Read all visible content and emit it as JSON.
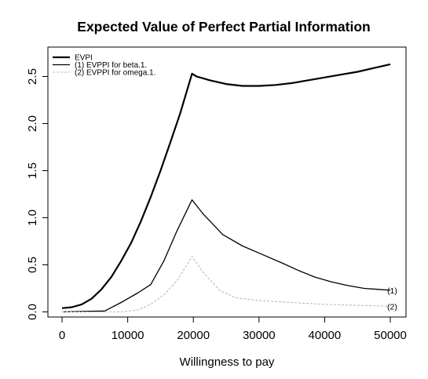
{
  "chart_data": {
    "type": "line",
    "title": "Expected Value of Perfect Partial Information",
    "xlabel": "Willingness to pay",
    "ylabel": "",
    "xlim": [
      0,
      50000
    ],
    "ylim": [
      0,
      2.6
    ],
    "x_ticks": [
      0,
      10000,
      20000,
      30000,
      40000,
      50000
    ],
    "y_ticks": [
      0.0,
      0.5,
      1.0,
      1.5,
      2.0,
      2.5
    ],
    "x_tick_labels": [
      "0",
      "10000",
      "20000",
      "30000",
      "40000",
      "50000"
    ],
    "y_tick_labels": [
      "0.0",
      "0.5",
      "1.0",
      "1.5",
      "2.0",
      "2.5"
    ],
    "grid": false,
    "legend_position": "top-left",
    "series": [
      {
        "name": "EVPI",
        "style": "solid-thick",
        "color": "#000000",
        "points": [
          [
            0,
            0.04
          ],
          [
            1500,
            0.05
          ],
          [
            3000,
            0.08
          ],
          [
            4500,
            0.14
          ],
          [
            6000,
            0.24
          ],
          [
            7500,
            0.37
          ],
          [
            9000,
            0.54
          ],
          [
            10500,
            0.73
          ],
          [
            12000,
            0.96
          ],
          [
            13500,
            1.22
          ],
          [
            15000,
            1.5
          ],
          [
            16500,
            1.8
          ],
          [
            18000,
            2.11
          ],
          [
            19800,
            2.53
          ],
          [
            20500,
            2.5
          ],
          [
            22500,
            2.46
          ],
          [
            25000,
            2.42
          ],
          [
            27500,
            2.4
          ],
          [
            30000,
            2.4
          ],
          [
            32500,
            2.41
          ],
          [
            35000,
            2.43
          ],
          [
            37500,
            2.46
          ],
          [
            40000,
            2.49
          ],
          [
            42500,
            2.52
          ],
          [
            45000,
            2.55
          ],
          [
            47500,
            2.59
          ],
          [
            50000,
            2.63
          ]
        ]
      },
      {
        "name": "(1) EVPPI for beta.1.",
        "style": "solid",
        "color": "#000000",
        "end_label": "(1)",
        "points": [
          [
            0,
            0.0
          ],
          [
            6500,
            0.01
          ],
          [
            9000,
            0.1
          ],
          [
            11500,
            0.2
          ],
          [
            13500,
            0.29
          ],
          [
            15500,
            0.54
          ],
          [
            17500,
            0.86
          ],
          [
            19800,
            1.19
          ],
          [
            21500,
            1.04
          ],
          [
            24500,
            0.82
          ],
          [
            27500,
            0.7
          ],
          [
            30500,
            0.61
          ],
          [
            33500,
            0.52
          ],
          [
            36000,
            0.44
          ],
          [
            38500,
            0.37
          ],
          [
            41000,
            0.32
          ],
          [
            43500,
            0.28
          ],
          [
            46000,
            0.25
          ],
          [
            48000,
            0.24
          ],
          [
            50000,
            0.23
          ]
        ]
      },
      {
        "name": "(2) EVPPI for omega.1.",
        "style": "dashed",
        "color": "#bbbbbb",
        "end_label": "(2)",
        "points": [
          [
            0,
            0.0
          ],
          [
            9000,
            0.0
          ],
          [
            11500,
            0.02
          ],
          [
            13500,
            0.08
          ],
          [
            15500,
            0.18
          ],
          [
            17500,
            0.33
          ],
          [
            19800,
            0.59
          ],
          [
            21500,
            0.42
          ],
          [
            24000,
            0.23
          ],
          [
            26500,
            0.15
          ],
          [
            30000,
            0.12
          ],
          [
            35000,
            0.1
          ],
          [
            40000,
            0.08
          ],
          [
            45000,
            0.07
          ],
          [
            50000,
            0.06
          ]
        ]
      }
    ]
  }
}
